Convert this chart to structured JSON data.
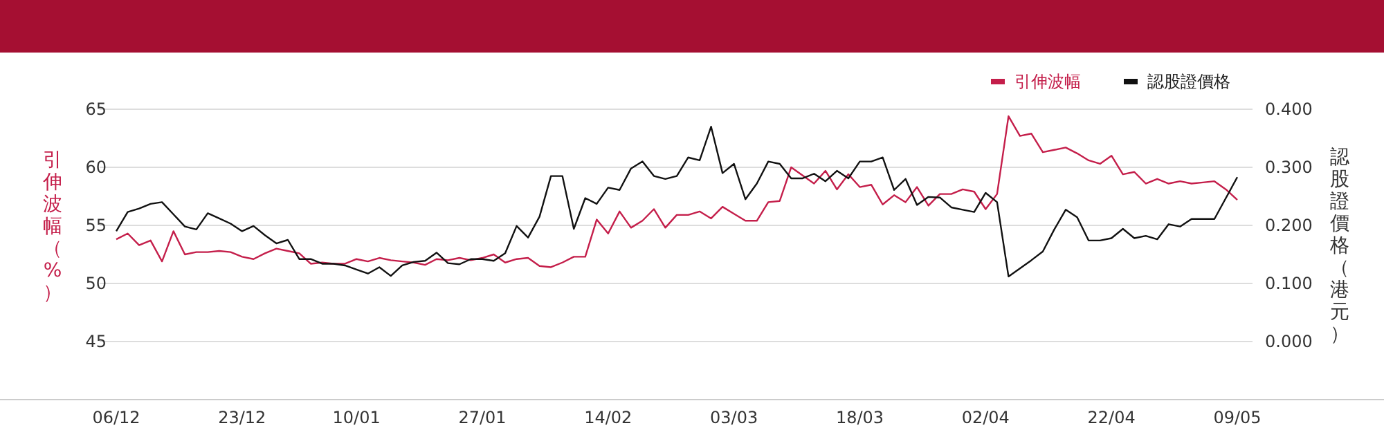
{
  "chart_data": {
    "type": "line",
    "categories": [
      "06/12",
      null,
      null,
      null,
      null,
      null,
      null,
      null,
      null,
      null,
      null,
      "23/12",
      null,
      null,
      null,
      null,
      null,
      null,
      null,
      null,
      null,
      "10/01",
      null,
      null,
      null,
      null,
      null,
      null,
      null,
      null,
      null,
      null,
      "27/01",
      null,
      null,
      null,
      null,
      null,
      null,
      null,
      null,
      null,
      null,
      "14/02",
      null,
      null,
      null,
      null,
      null,
      null,
      null,
      null,
      null,
      null,
      "03/03",
      null,
      null,
      null,
      null,
      null,
      null,
      null,
      null,
      null,
      null,
      "18/03",
      null,
      null,
      null,
      null,
      null,
      null,
      null,
      null,
      null,
      null,
      "02/04",
      null,
      null,
      null,
      null,
      null,
      null,
      null,
      null,
      null,
      null,
      "22/04",
      null,
      null,
      null,
      null,
      null,
      null,
      null,
      null,
      null,
      null,
      "09/05"
    ],
    "series": [
      {
        "name": "引伸波幅",
        "color": "#c41e4a",
        "values": [
          53.8,
          54.3,
          53.3,
          53.7,
          51.9,
          54.5,
          52.5,
          52.7,
          52.7,
          52.8,
          52.7,
          52.3,
          52.1,
          52.6,
          53.0,
          52.8,
          52.6,
          51.7,
          51.8,
          51.7,
          51.7,
          52.1,
          51.9,
          52.2,
          52.0,
          51.9,
          51.8,
          51.6,
          52.1,
          52.0,
          52.2,
          52.0,
          52.2,
          52.5,
          51.8,
          52.1,
          52.2,
          51.5,
          51.4,
          51.8,
          52.3,
          52.3,
          55.5,
          54.3,
          56.2,
          54.8,
          55.4,
          56.4,
          54.8,
          55.9,
          55.9,
          56.2,
          55.6,
          56.6,
          56.0,
          55.4,
          55.4,
          57.0,
          57.1,
          60.0,
          59.3,
          58.6,
          59.7,
          58.1,
          59.4,
          58.3,
          58.5,
          56.8,
          57.6,
          57.0,
          58.3,
          56.7,
          57.7,
          57.7,
          58.1,
          57.9,
          56.4,
          57.7,
          64.4,
          62.7,
          62.9,
          61.3,
          61.5,
          61.7,
          61.2,
          60.6,
          60.3,
          61.0,
          59.4,
          59.6,
          58.6,
          59.0,
          58.6,
          58.8,
          58.6,
          58.7,
          58.8,
          58.1,
          57.2
        ]
      },
      {
        "name": "認股證價格",
        "color": "#111111",
        "axis": "y2",
        "values": [
          0.19,
          0.223,
          0.229,
          0.237,
          0.24,
          0.219,
          0.198,
          0.193,
          0.221,
          0.212,
          0.203,
          0.19,
          0.199,
          0.183,
          0.169,
          0.175,
          0.142,
          0.142,
          0.134,
          0.134,
          0.131,
          0.124,
          0.117,
          0.128,
          0.113,
          0.131,
          0.137,
          0.139,
          0.153,
          0.135,
          0.133,
          0.142,
          0.142,
          0.139,
          0.152,
          0.199,
          0.179,
          0.215,
          0.285,
          0.285,
          0.194,
          0.247,
          0.237,
          0.265,
          0.261,
          0.298,
          0.31,
          0.285,
          0.28,
          0.285,
          0.317,
          0.312,
          0.37,
          0.29,
          0.306,
          0.245,
          0.272,
          0.31,
          0.306,
          0.281,
          0.281,
          0.289,
          0.276,
          0.294,
          0.281,
          0.31,
          0.31,
          0.317,
          0.261,
          0.28,
          0.235,
          0.249,
          0.248,
          0.231,
          0.227,
          0.223,
          0.256,
          0.24,
          0.112,
          0.126,
          0.14,
          0.155,
          0.193,
          0.227,
          0.214,
          0.174,
          0.174,
          0.178,
          0.194,
          0.178,
          0.182,
          0.176,
          0.202,
          0.198,
          0.211,
          0.211,
          0.211,
          0.247,
          0.283
        ]
      }
    ],
    "ylabel": "引伸波幅（%）",
    "y2label": "認股證價格（港元）",
    "ylim": [
      40,
      65
    ],
    "yticks": [
      45,
      50,
      55,
      60,
      65
    ],
    "y2lim": [
      -0.1,
      0.4
    ],
    "y2ticks": [
      {
        "value": 0,
        "label": "0.000"
      },
      {
        "value": 0.1,
        "label": "0.100"
      },
      {
        "value": 0.2,
        "label": "0.200"
      },
      {
        "value": 0.3,
        "label": "0.300"
      },
      {
        "value": 0.4,
        "label": "0.400"
      }
    ],
    "grid": "y",
    "legend": "top right",
    "marker": "none",
    "line_style": "solid"
  }
}
